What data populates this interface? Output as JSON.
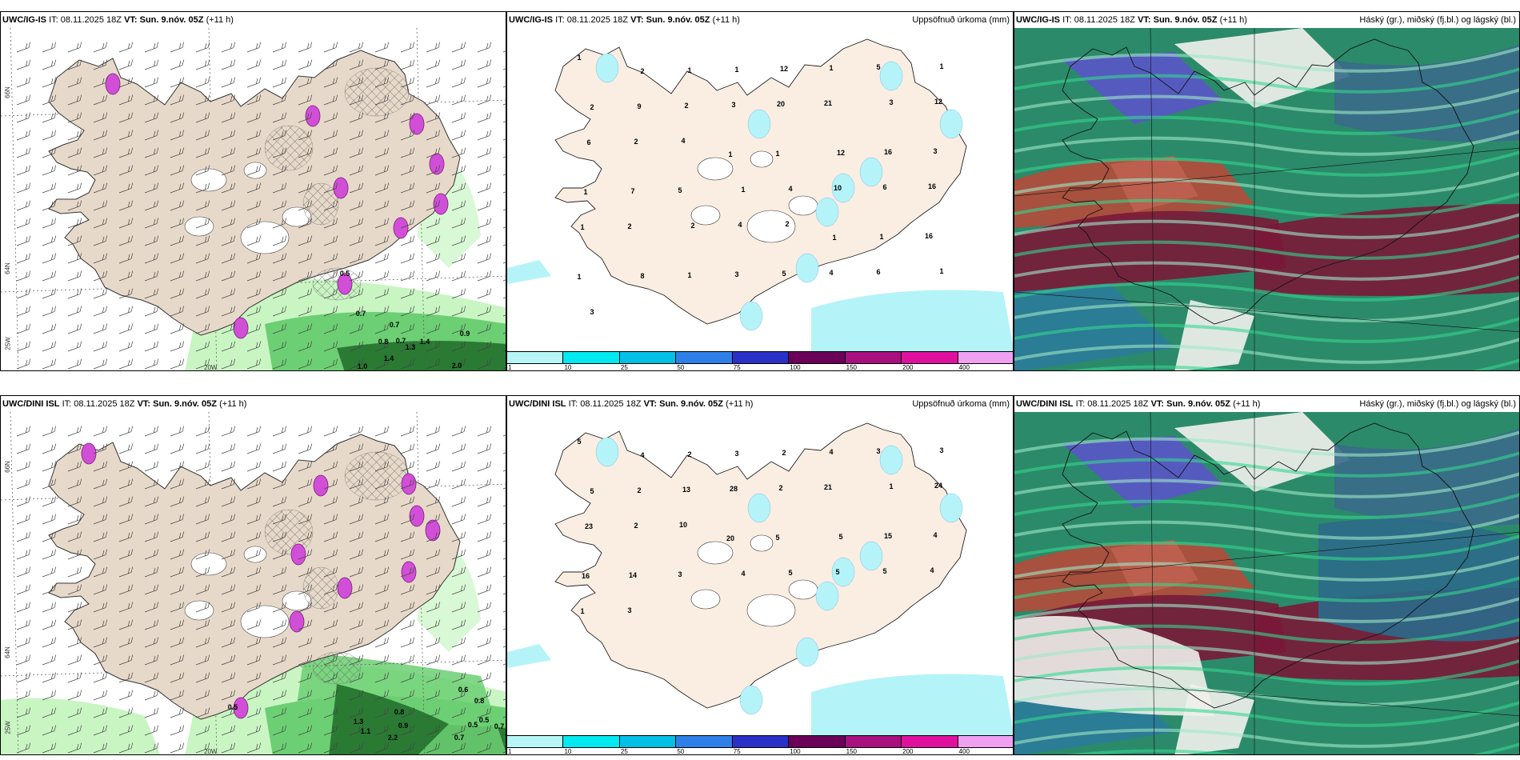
{
  "rows": [
    {
      "model": "UWC/IG-IS",
      "it_label": "IT:",
      "it_value": "08.11.2025 18Z",
      "vt_label": "VT:",
      "vt_value": "Sun. 9.nóv. 05Z",
      "lead": "(+11 h)"
    },
    {
      "model": "UWC/DINI ISL",
      "it_label": "IT:",
      "it_value": "08.11.2025 18Z",
      "vt_label": "VT:",
      "vt_value": "Sun. 9.nóv. 05Z",
      "lead": "(+11 h)"
    }
  ],
  "precip_title": "Uppsöfnuð úrkoma (mm)",
  "cloud_title": "Háský (gr.), miðský (fj.bl.) og lágský (bl.)",
  "axis_labels": {
    "lat66": "66N",
    "lat64": "64N",
    "lon20": "20W",
    "lon25": "25W"
  },
  "colorbar": {
    "ticks": [
      "1",
      "10",
      "25",
      "50",
      "75",
      "100",
      "150",
      "200",
      "400"
    ],
    "colors": [
      "#b7f5f7",
      "#00e8f0",
      "#00c0e8",
      "#2f7fe8",
      "#2a30c8",
      "#6a0058",
      "#a8107f",
      "#e0109f",
      "#f0a0f0"
    ]
  },
  "precip_values_top": [
    "1",
    "2",
    "1",
    "1",
    "12",
    "1",
    "5",
    "1",
    "2",
    "9",
    "2",
    "3",
    "20",
    "21",
    "3",
    "12",
    "6",
    "2",
    "4",
    "1",
    "1",
    "12",
    "16",
    "3",
    "1",
    "7",
    "5",
    "1",
    "4",
    "10",
    "6",
    "16",
    "1",
    "2",
    "2",
    "4",
    "2",
    "1",
    "1",
    "16",
    "1",
    "8",
    "1",
    "3",
    "5",
    "4",
    "6",
    "1",
    "3"
  ],
  "precip_values_bottom": [
    "5",
    "4",
    "2",
    "3",
    "2",
    "4",
    "3",
    "3",
    "5",
    "2",
    "13",
    "28",
    "2",
    "21",
    "1",
    "24",
    "23",
    "2",
    "10",
    "20",
    "5",
    "5",
    "15",
    "4",
    "16",
    "14",
    "3",
    "4",
    "5",
    "5",
    "5",
    "4",
    "1",
    "3"
  ],
  "wind_values_top": [
    "0.5",
    "0.7",
    "0.7",
    "0.8",
    "0.7",
    "1.0",
    "1.4",
    "1.3",
    "1.4",
    "2.0",
    "0.9"
  ],
  "wind_values_bottom": [
    "0.5",
    "0.6",
    "0.8",
    "0.5",
    "0.7",
    "0.8",
    "1.3",
    "2.2",
    "0.9",
    "0.5",
    "0.7",
    "1.1"
  ],
  "colors": {
    "land": "#e7d9c9",
    "land_precip": "#faeee2",
    "sea_precip": "#b4f4f8",
    "wind_light": "#c9f5c3",
    "wind_mid": "#6ccf73",
    "wind_dark": "#2a7a34",
    "magenta": "#d14fd6"
  }
}
